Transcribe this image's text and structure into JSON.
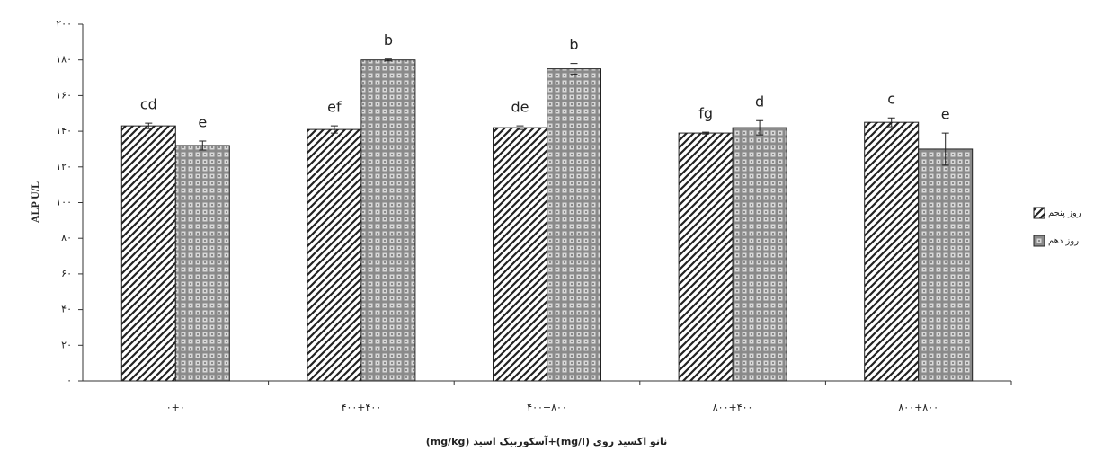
{
  "chart_data": {
    "type": "bar",
    "y_label": "ALP U/L",
    "x_label": "نانو اکسید روی (mg/l)+آسکوربیک اسید (mg/kg)",
    "categories": [
      "۰+۰",
      "۴۰۰+۴۰۰",
      "۴۰۰+۸۰۰",
      "۸۰۰+۴۰۰",
      "۸۰۰+۸۰۰"
    ],
    "series": [
      {
        "name": "روز پنجم",
        "color": "#222222",
        "pattern": "hatch",
        "values": [
          143,
          141,
          142,
          139,
          145
        ],
        "errors": [
          1.5,
          2,
          1,
          0.5,
          2.5
        ],
        "letters": [
          "cd",
          "ef",
          "de",
          "fg",
          "c"
        ]
      },
      {
        "name": "روز دهم",
        "color": "#8a8a8a",
        "pattern": "check",
        "values": [
          132,
          180,
          175,
          142,
          130
        ],
        "errors": [
          2.5,
          0.5,
          3,
          4,
          9
        ],
        "letters": [
          "e",
          "b",
          "b",
          "d",
          "e"
        ]
      }
    ],
    "ylim": [
      0,
      200
    ],
    "yticks": [
      {
        "value": 0,
        "label": "۰"
      },
      {
        "value": 20,
        "label": "۲۰"
      },
      {
        "value": 40,
        "label": "۴۰"
      },
      {
        "value": 60,
        "label": "۶۰"
      },
      {
        "value": 80,
        "label": "۸۰"
      },
      {
        "value": 100,
        "label": "۱۰۰"
      },
      {
        "value": 120,
        "label": "۱۲۰"
      },
      {
        "value": 140,
        "label": "۱۴۰"
      },
      {
        "value": 160,
        "label": "۱۶۰"
      },
      {
        "value": 180,
        "label": "۱۸۰"
      },
      {
        "value": 200,
        "label": "۲۰۰"
      }
    ],
    "grid": false,
    "legend": "right"
  }
}
